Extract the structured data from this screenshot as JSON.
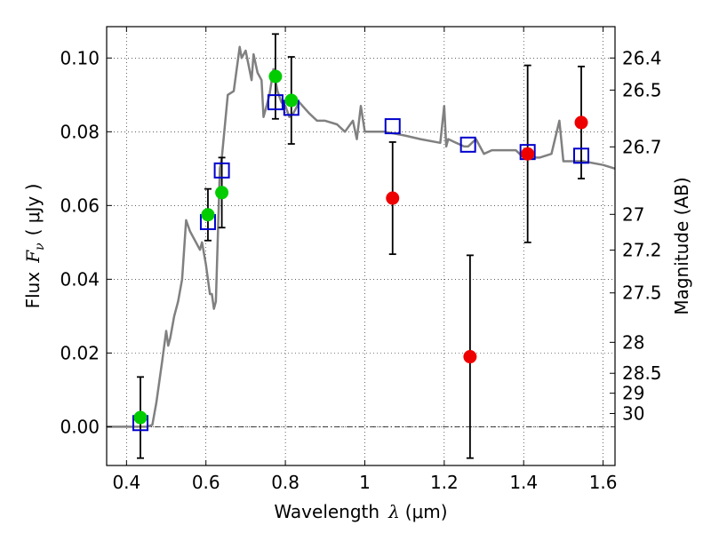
{
  "chart_data": {
    "type": "scatter",
    "xlabel_prefix": "Wavelength",
    "xlabel_symbol": "λ",
    "xlabel_unit": "(μm)",
    "ylabel_prefix": "Flux",
    "ylabel_symbol": "F",
    "ylabel_subscript": "ν",
    "ylabel_unit": "( μJy )",
    "y2label": "Magnitude (AB)",
    "xlim": [
      0.35,
      1.63
    ],
    "ylim": [
      -0.0105,
      0.1085
    ],
    "grid": true,
    "x_ticks": [
      0.4,
      0.6,
      0.8,
      1.0,
      1.2,
      1.4,
      1.6
    ],
    "x_tick_labels": [
      "0.4",
      "0.6",
      "0.8",
      "1",
      "1.2",
      "1.4",
      "1.6"
    ],
    "y_ticks": [
      0.0,
      0.02,
      0.04,
      0.06,
      0.08,
      0.1
    ],
    "y_tick_labels": [
      "0.00",
      "0.02",
      "0.04",
      "0.06",
      "0.08",
      "0.10"
    ],
    "y2_ticks": [
      {
        "label": "26.4",
        "flux": 0.1
      },
      {
        "label": "26.5",
        "flux": 0.0913
      },
      {
        "label": "26.7",
        "flux": 0.0759
      },
      {
        "label": "27",
        "flux": 0.0576
      },
      {
        "label": "27.2",
        "flux": 0.0479
      },
      {
        "label": "27.5",
        "flux": 0.0363
      },
      {
        "label": "28",
        "flux": 0.0229
      },
      {
        "label": "28.5",
        "flux": 0.0145
      },
      {
        "label": "29",
        "flux": 0.0091
      },
      {
        "label": "30",
        "flux": 0.0036
      }
    ],
    "model_spectrum": {
      "color": "#808080",
      "x": [
        0.35,
        0.44,
        0.45,
        0.465,
        0.475,
        0.49,
        0.5,
        0.505,
        0.51,
        0.52,
        0.53,
        0.54,
        0.55,
        0.56,
        0.575,
        0.585,
        0.59,
        0.6,
        0.61,
        0.615,
        0.62,
        0.625,
        0.635,
        0.64,
        0.655,
        0.67,
        0.685,
        0.69,
        0.7,
        0.715,
        0.72,
        0.73,
        0.74,
        0.745,
        0.75,
        0.76,
        0.77,
        0.78,
        0.79,
        0.8,
        0.81,
        0.82,
        0.835,
        0.86,
        0.88,
        0.9,
        0.93,
        0.95,
        0.97,
        0.98,
        0.99,
        1.0,
        1.05,
        1.1,
        1.14,
        1.19,
        1.2,
        1.205,
        1.21,
        1.25,
        1.26,
        1.28,
        1.3,
        1.32,
        1.34,
        1.38,
        1.4,
        1.44,
        1.47,
        1.49,
        1.5,
        1.55,
        1.6,
        1.63
      ],
      "y": [
        0.0,
        0.0,
        0.0,
        0.0005,
        0.0065,
        0.018,
        0.026,
        0.022,
        0.024,
        0.03,
        0.034,
        0.04,
        0.056,
        0.053,
        0.05,
        0.048,
        0.05,
        0.044,
        0.036,
        0.036,
        0.032,
        0.034,
        0.07,
        0.073,
        0.09,
        0.091,
        0.103,
        0.1,
        0.102,
        0.094,
        0.101,
        0.096,
        0.094,
        0.084,
        0.086,
        0.09,
        0.097,
        0.091,
        0.088,
        0.087,
        0.084,
        0.085,
        0.088,
        0.085,
        0.083,
        0.083,
        0.082,
        0.08,
        0.083,
        0.078,
        0.087,
        0.08,
        0.08,
        0.079,
        0.078,
        0.077,
        0.087,
        0.076,
        0.078,
        0.076,
        0.076,
        0.078,
        0.074,
        0.075,
        0.075,
        0.075,
        0.073,
        0.073,
        0.074,
        0.083,
        0.072,
        0.072,
        0.071,
        0.07
      ]
    },
    "series": [
      {
        "marker": "open-square",
        "color": "#0000cc",
        "x": [
          0.435,
          0.605,
          0.64,
          0.775,
          0.815,
          1.07,
          1.26,
          1.41,
          1.545
        ],
        "y": [
          0.001,
          0.0555,
          0.0695,
          0.088,
          0.0865,
          0.0815,
          0.0765,
          0.0745,
          0.0735
        ]
      },
      {
        "marker": "filled-circle",
        "color": "#00cc00",
        "x": [
          0.435,
          0.605,
          0.64,
          0.775,
          0.815
        ],
        "y": [
          0.0025,
          0.0575,
          0.0635,
          0.095,
          0.0885
        ],
        "err": [
          0.011,
          0.007,
          0.0095,
          0.0115,
          0.0118
        ]
      },
      {
        "marker": "filled-circle",
        "color": "#ee0000",
        "x": [
          1.07,
          1.265,
          1.41,
          1.545
        ],
        "y": [
          0.062,
          0.019,
          0.074,
          0.0825
        ],
        "err": [
          0.0152,
          0.0275,
          0.024,
          0.0152
        ]
      }
    ]
  }
}
